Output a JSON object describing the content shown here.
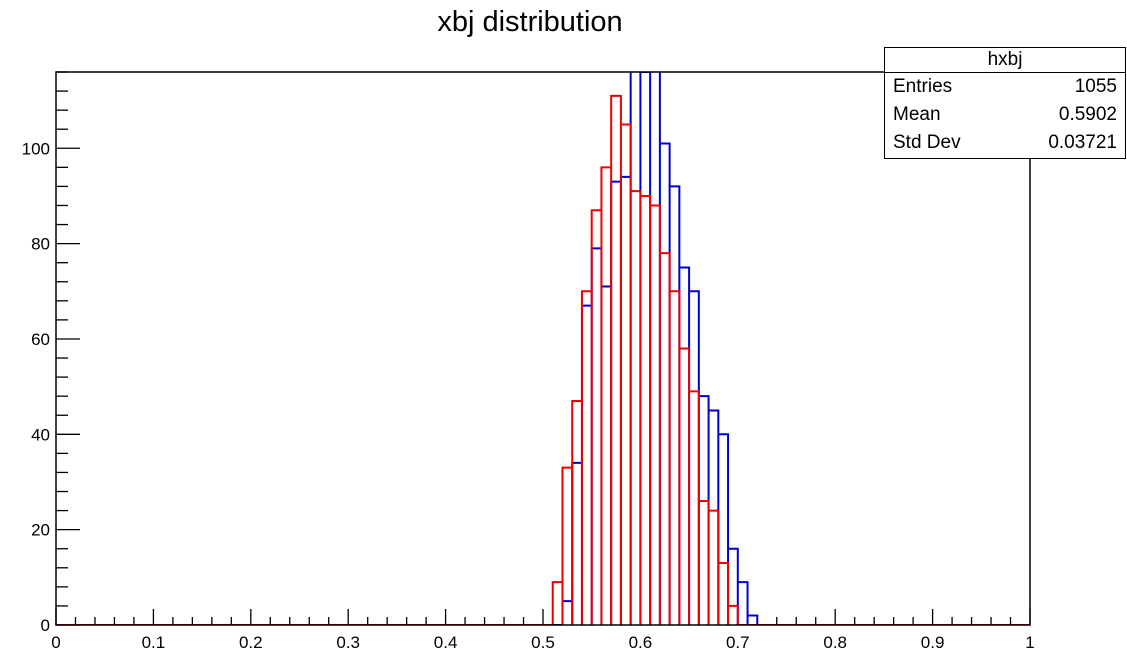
{
  "chart_data": {
    "type": "bar",
    "title": "xbj distribution",
    "xlabel": "",
    "ylabel": "",
    "xlim": [
      0,
      1
    ],
    "ylim": [
      0,
      116
    ],
    "x_ticks": [
      "0",
      "0.1",
      "0.2",
      "0.3",
      "0.4",
      "0.5",
      "0.6",
      "0.7",
      "0.8",
      "0.9",
      "1"
    ],
    "y_ticks": [
      "0",
      "20",
      "40",
      "60",
      "80",
      "100"
    ],
    "grid": false,
    "bin_width": 0.01,
    "series": [
      {
        "color": "#0000cc",
        "bins": [
          {
            "x0": 0.52,
            "value": 5
          },
          {
            "x0": 0.53,
            "value": 34
          },
          {
            "x0": 0.54,
            "value": 67
          },
          {
            "x0": 0.55,
            "value": 79
          },
          {
            "x0": 0.56,
            "value": 71
          },
          {
            "x0": 0.57,
            "value": 93
          },
          {
            "x0": 0.58,
            "value": 94
          },
          {
            "x0": 0.59,
            "value": 125
          },
          {
            "x0": 0.6,
            "value": 116
          },
          {
            "x0": 0.61,
            "value": 125
          },
          {
            "x0": 0.62,
            "value": 101
          },
          {
            "x0": 0.63,
            "value": 92
          },
          {
            "x0": 0.64,
            "value": 75
          },
          {
            "x0": 0.65,
            "value": 70
          },
          {
            "x0": 0.66,
            "value": 48
          },
          {
            "x0": 0.67,
            "value": 45
          },
          {
            "x0": 0.68,
            "value": 40
          },
          {
            "x0": 0.69,
            "value": 16
          },
          {
            "x0": 0.7,
            "value": 9
          },
          {
            "x0": 0.71,
            "value": 2
          }
        ]
      },
      {
        "color": "#ee0000",
        "bins": [
          {
            "x0": 0.51,
            "value": 9
          },
          {
            "x0": 0.52,
            "value": 33
          },
          {
            "x0": 0.53,
            "value": 47
          },
          {
            "x0": 0.54,
            "value": 70
          },
          {
            "x0": 0.55,
            "value": 87
          },
          {
            "x0": 0.56,
            "value": 96
          },
          {
            "x0": 0.57,
            "value": 111
          },
          {
            "x0": 0.58,
            "value": 105
          },
          {
            "x0": 0.59,
            "value": 91
          },
          {
            "x0": 0.6,
            "value": 90
          },
          {
            "x0": 0.61,
            "value": 88
          },
          {
            "x0": 0.62,
            "value": 78
          },
          {
            "x0": 0.63,
            "value": 70
          },
          {
            "x0": 0.64,
            "value": 58
          },
          {
            "x0": 0.65,
            "value": 49
          },
          {
            "x0": 0.66,
            "value": 26
          },
          {
            "x0": 0.67,
            "value": 24
          },
          {
            "x0": 0.68,
            "value": 13
          },
          {
            "x0": 0.69,
            "value": 4
          }
        ]
      }
    ]
  },
  "stats": {
    "title": "hxbj",
    "rows": [
      {
        "label": "Entries",
        "value": "1055"
      },
      {
        "label": "Mean",
        "value": "0.5902"
      },
      {
        "label": "Std Dev",
        "value": "0.03721"
      }
    ]
  }
}
